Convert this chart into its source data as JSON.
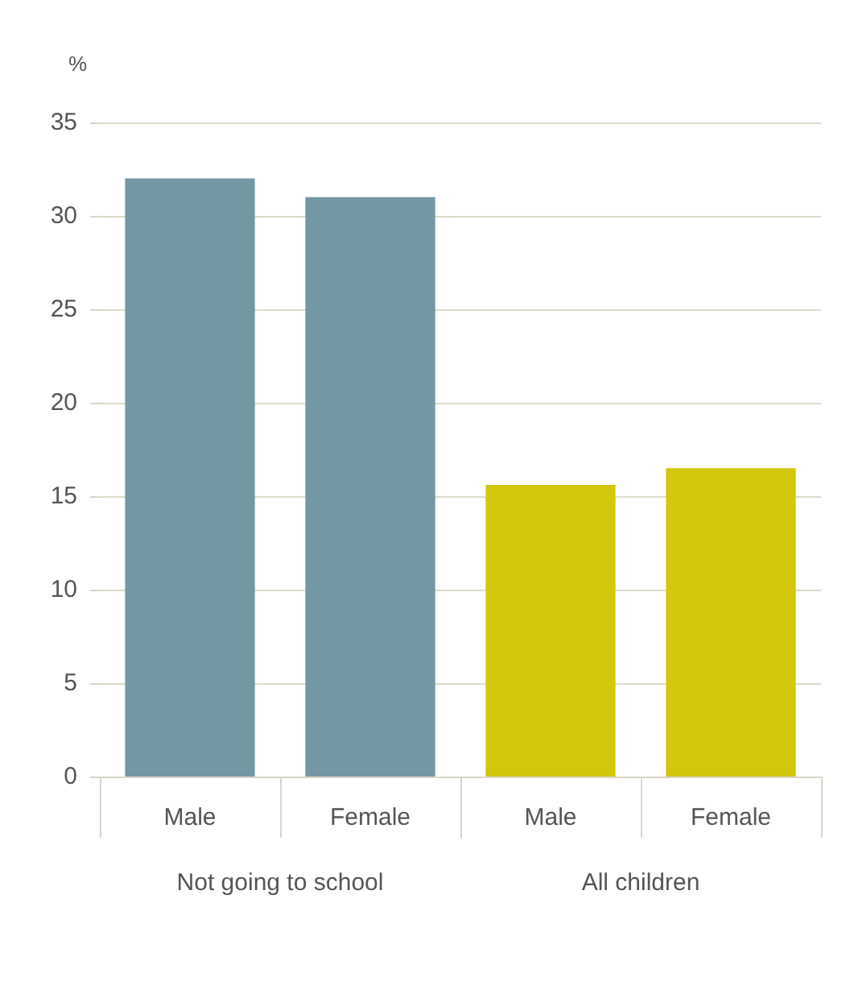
{
  "chart_data": {
    "type": "bar",
    "ylabel": "%",
    "categories": [
      "Male",
      "Female",
      "Male",
      "Female"
    ],
    "values": [
      32,
      31,
      15.6,
      16.5
    ],
    "colors": [
      "#7397a3",
      "#7397a3",
      "#d2c70d",
      "#d2c70d"
    ],
    "ylim": [
      0,
      35
    ],
    "yticks": [
      0,
      5,
      10,
      15,
      20,
      25,
      30,
      35
    ],
    "grid": "y",
    "annotations": [
      "Not going to school",
      "All children"
    ]
  }
}
